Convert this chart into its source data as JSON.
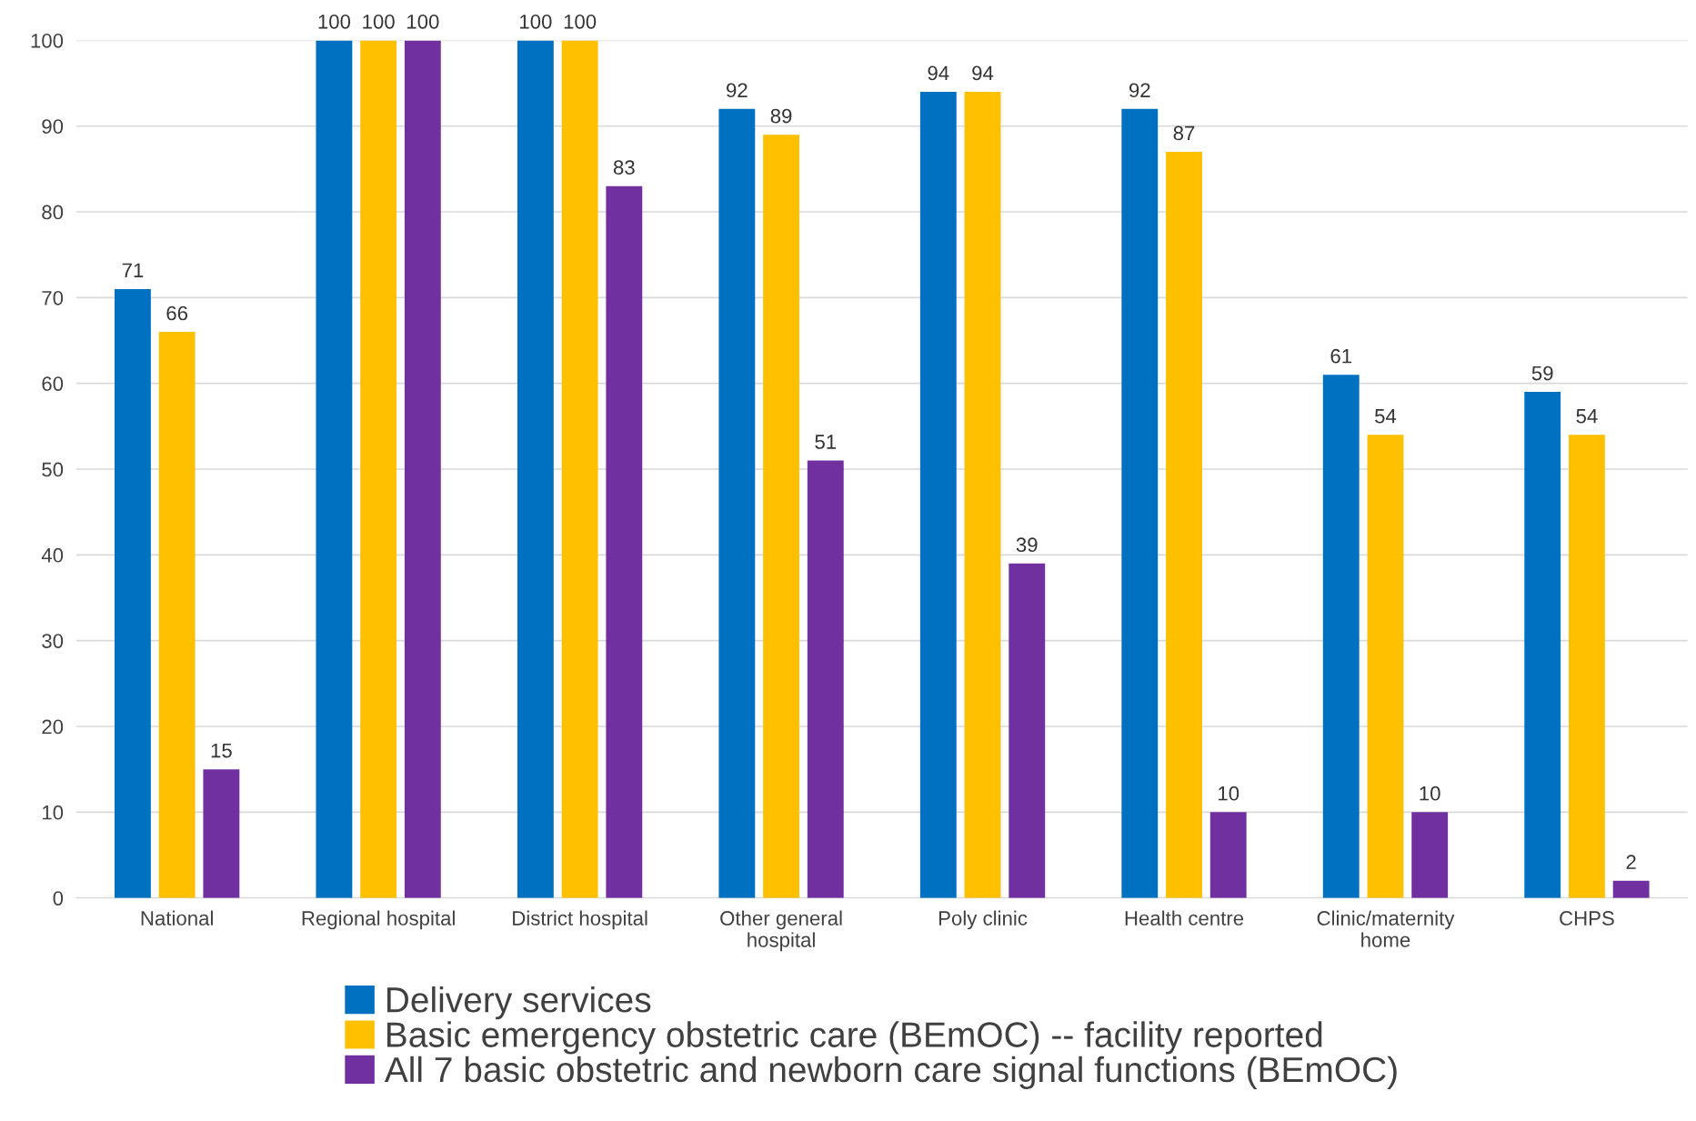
{
  "chart_data": {
    "type": "bar",
    "categories": [
      "National",
      "Regional hospital",
      "District hospital",
      "Other general\nhospital",
      "Poly clinic",
      "Health centre",
      "Clinic/maternity\nhome",
      "CHPS"
    ],
    "series": [
      {
        "name": "Delivery services",
        "color": "#0070c0",
        "values": [
          71,
          100,
          100,
          92,
          94,
          92,
          61,
          59
        ]
      },
      {
        "name": "Basic emergency obstetric care (BEmOC) -- facility reported",
        "color": "#ffc000",
        "values": [
          66,
          100,
          100,
          89,
          94,
          87,
          54,
          54
        ]
      },
      {
        "name": "All 7 basic obstetric and newborn care signal functions (BEmOC)",
        "color": "#7030a0",
        "values": [
          15,
          100,
          83,
          51,
          39,
          10,
          10,
          2
        ]
      }
    ],
    "ylim": [
      0,
      100
    ],
    "yticks": [
      0,
      10,
      20,
      30,
      40,
      50,
      60,
      70,
      80,
      90,
      100
    ],
    "grid": "y",
    "legend": "bottom",
    "data_labels": true
  }
}
